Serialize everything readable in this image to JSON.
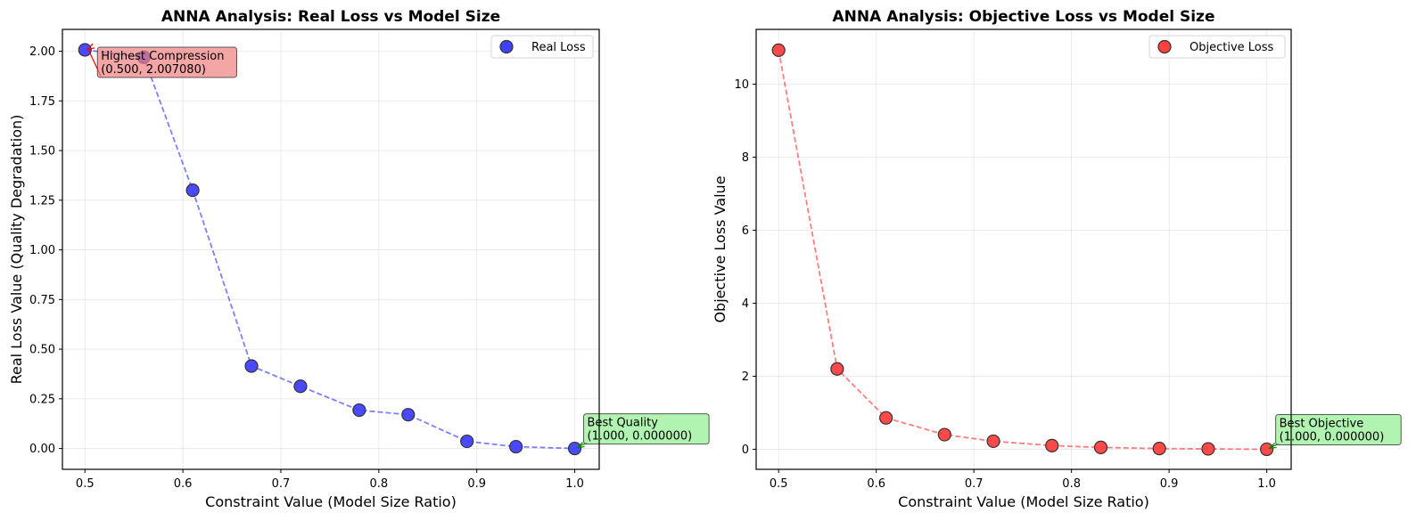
{
  "chart_data": [
    {
      "type": "line",
      "title": "ANNA Analysis: Real Loss vs Model Size",
      "xlabel": "Constraint Value (Model Size Ratio)",
      "ylabel": "Real Loss Value (Quality Degradation)",
      "xlim": [
        0.477,
        1.025
      ],
      "ylim": [
        -0.105,
        2.11
      ],
      "xticks": [
        0.5,
        0.6,
        0.7,
        0.8,
        0.9,
        1.0
      ],
      "xtick_labels": [
        "0.5",
        "0.6",
        "0.7",
        "0.8",
        "0.9",
        "1.0"
      ],
      "yticks": [
        0.0,
        0.25,
        0.5,
        0.75,
        1.0,
        1.25,
        1.5,
        1.75,
        2.0
      ],
      "ytick_labels": [
        "0.00",
        "0.25",
        "0.50",
        "0.75",
        "1.00",
        "1.25",
        "1.50",
        "1.75",
        "2.00"
      ],
      "grid": true,
      "legend_position": "top-right",
      "series": [
        {
          "name": "Real Loss",
          "color": "#0000ff",
          "line_style": "dashed",
          "x": [
            0.5,
            0.56,
            0.61,
            0.67,
            0.72,
            0.78,
            0.83,
            0.89,
            0.94,
            1.0
          ],
          "y": [
            2.00708,
            1.97,
            1.3,
            0.415,
            0.313,
            0.193,
            0.17,
            0.036,
            0.009,
            0.0
          ]
        }
      ],
      "annotations": [
        {
          "line1": "Highest Compression",
          "line2": "(0.500, 2.007080)",
          "x": 0.5,
          "y": 2.00708,
          "box_color": "#f08080",
          "arrow_color": "#ff0000"
        },
        {
          "line1": "Best Quality",
          "line2": "(1.000, 0.000000)",
          "x": 1.0,
          "y": 0.0,
          "box_color": "#90ee90",
          "arrow_color": "#008000"
        }
      ]
    },
    {
      "type": "line",
      "title": "ANNA Analysis: Objective Loss vs Model Size",
      "xlabel": "Constraint Value (Model Size Ratio)",
      "ylabel": "Objective Loss Value",
      "xlim": [
        0.477,
        1.025
      ],
      "ylim": [
        -0.55,
        11.5
      ],
      "xticks": [
        0.5,
        0.6,
        0.7,
        0.8,
        0.9,
        1.0
      ],
      "xtick_labels": [
        "0.5",
        "0.6",
        "0.7",
        "0.8",
        "0.9",
        "1.0"
      ],
      "yticks": [
        0,
        2,
        4,
        6,
        8,
        10
      ],
      "ytick_labels": [
        "0",
        "2",
        "4",
        "6",
        "8",
        "10"
      ],
      "grid": true,
      "legend_position": "top-right",
      "series": [
        {
          "name": "Objective Loss",
          "color": "#ff0000",
          "line_style": "dashed",
          "x": [
            0.5,
            0.56,
            0.61,
            0.67,
            0.72,
            0.78,
            0.83,
            0.89,
            0.94,
            1.0
          ],
          "y": [
            10.93,
            2.2,
            0.86,
            0.4,
            0.22,
            0.1,
            0.05,
            0.02,
            0.01,
            0.0
          ]
        }
      ],
      "annotations": [
        {
          "line1": "Best Objective",
          "line2": "(1.000, 0.000000)",
          "x": 1.0,
          "y": 0.0,
          "box_color": "#90ee90",
          "arrow_color": "#008000"
        }
      ]
    }
  ]
}
